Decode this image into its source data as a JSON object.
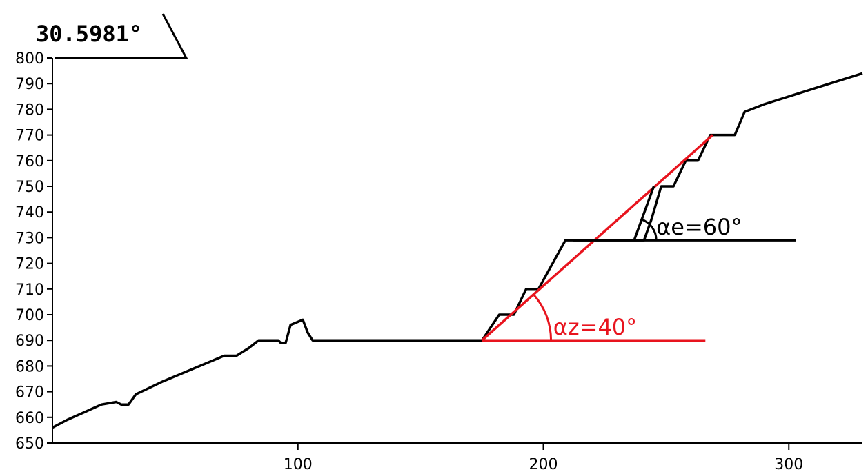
{
  "readout": {
    "value": "30.5981°"
  },
  "chart_data": {
    "type": "line",
    "title": "",
    "xlabel": "",
    "ylabel": "",
    "xlim": [
      0,
      330
    ],
    "ylim": [
      650,
      800
    ],
    "x_ticks": [
      100,
      200,
      300
    ],
    "y_ticks": [
      650,
      660,
      670,
      680,
      690,
      700,
      710,
      720,
      730,
      740,
      750,
      760,
      770,
      780,
      790,
      800
    ],
    "grid": false,
    "series": [
      {
        "color": "#000000",
        "points": [
          [
            0,
            656
          ],
          [
            6,
            659
          ],
          [
            20,
            665
          ],
          [
            26,
            666
          ],
          [
            28,
            665
          ],
          [
            31,
            665
          ],
          [
            34,
            669
          ],
          [
            45,
            674
          ],
          [
            70,
            684
          ],
          [
            75,
            684
          ],
          [
            80,
            687
          ],
          [
            84,
            690
          ],
          [
            92,
            690
          ],
          [
            93,
            689
          ],
          [
            95,
            689
          ],
          [
            97,
            696
          ],
          [
            102,
            698
          ],
          [
            104,
            693
          ],
          [
            106,
            690
          ],
          [
            175,
            690
          ],
          [
            182,
            700
          ],
          [
            188,
            700
          ],
          [
            193,
            710
          ],
          [
            198,
            710
          ],
          [
            209,
            729
          ],
          [
            212,
            729
          ],
          [
            241,
            729
          ],
          [
            244,
            737
          ],
          [
            248,
            750
          ],
          [
            253,
            750
          ],
          [
            258,
            760
          ],
          [
            263,
            760
          ],
          [
            268,
            770
          ],
          [
            278,
            770
          ],
          [
            282,
            779
          ],
          [
            290,
            782
          ],
          [
            310,
            788
          ],
          [
            330,
            794
          ]
        ]
      }
    ],
    "annotations": [
      {
        "color": "#e8141e",
        "points": [
          [
            175,
            690
          ],
          [
            269,
            770
          ]
        ]
      },
      {
        "color": "#e8141e",
        "points": [
          [
            175,
            690
          ],
          [
            266,
            690
          ]
        ]
      },
      {
        "color": "#000000",
        "points": [
          [
            212,
            729
          ],
          [
            303,
            729
          ]
        ]
      },
      {
        "color": "#000000",
        "points": [
          [
            237,
            729
          ],
          [
            245,
            750
          ]
        ]
      }
    ],
    "angle_labels": [
      {
        "text": "αz=40°",
        "color": "#e8141e",
        "x": 204,
        "y": 690
      },
      {
        "text": "αe=60°",
        "color": "#000000",
        "x": 246,
        "y": 729
      }
    ]
  }
}
